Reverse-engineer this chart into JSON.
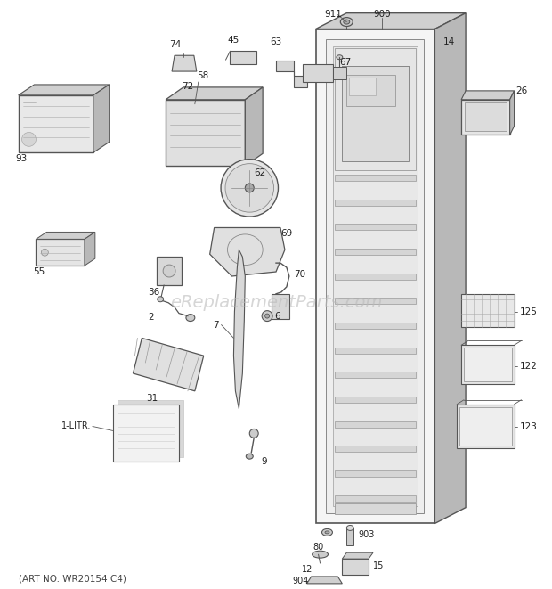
{
  "background_color": "#ffffff",
  "watermark_text": "eReplacementParts.com",
  "watermark_color": "#bbbbbb",
  "watermark_fontsize": 14,
  "footer_text": "(ART NO. WR20154 C4)",
  "footer_fontsize": 7.5,
  "footer_color": "#444444",
  "fig_width": 6.2,
  "fig_height": 6.61,
  "dpi": 100
}
